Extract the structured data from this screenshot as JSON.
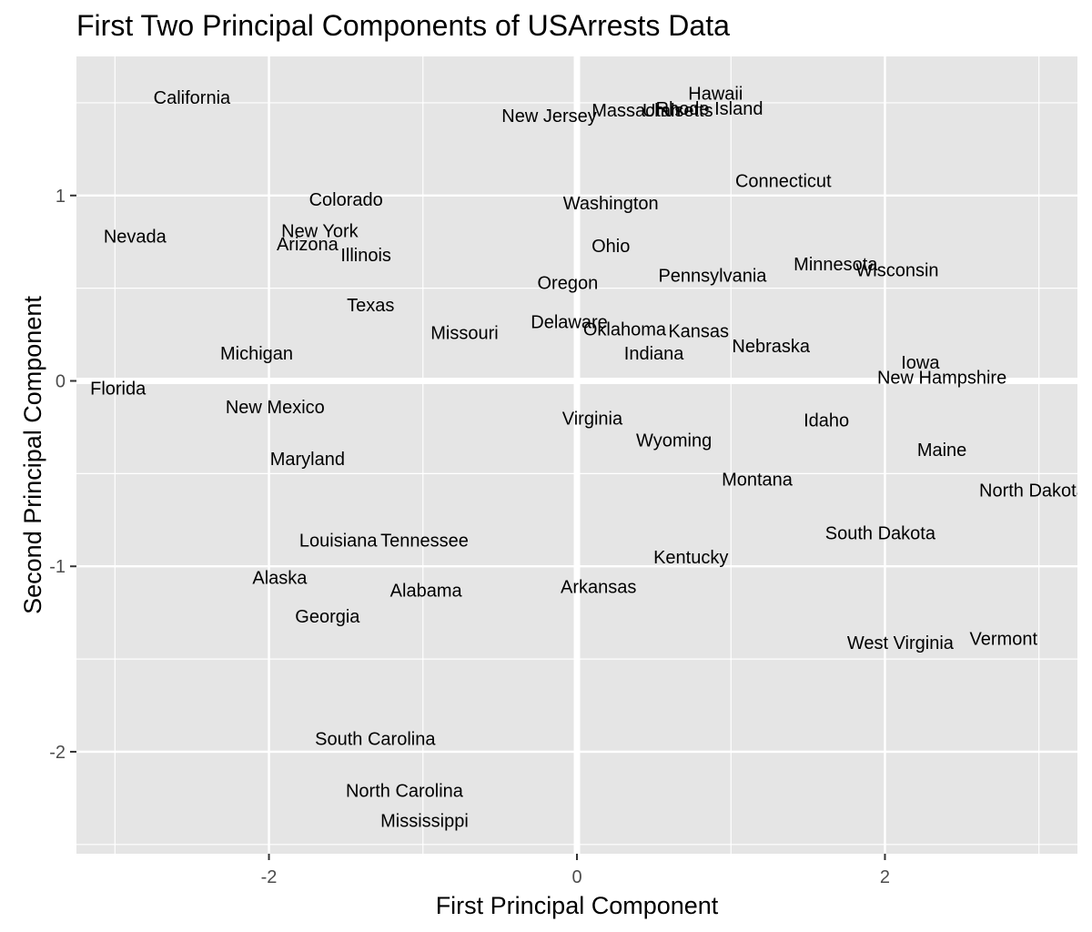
{
  "chart_data": {
    "type": "scatter",
    "title": "First Two Principal Components of USArrests Data",
    "xlabel": "First Principal Component",
    "ylabel": "Second Principal Component",
    "xlim": [
      -3.25,
      3.25
    ],
    "ylim": [
      -2.55,
      1.75
    ],
    "x_ticks": [
      -2,
      0,
      2
    ],
    "y_ticks": [
      -2,
      -1,
      0,
      1
    ],
    "x_tick_labels": [
      "-2",
      "0",
      "2"
    ],
    "y_tick_labels": [
      "-2",
      "-1",
      "0",
      "1"
    ],
    "grid": true,
    "panel_background": "#e5e5e5",
    "grid_color": "#ffffff",
    "marker": "text-label",
    "points": [
      {
        "label": "Alabama",
        "x": -0.98,
        "y": -1.13
      },
      {
        "label": "Alaska",
        "x": -1.93,
        "y": -1.06
      },
      {
        "label": "Arizona",
        "x": -1.75,
        "y": 0.74
      },
      {
        "label": "Arkansas",
        "x": 0.14,
        "y": -1.11
      },
      {
        "label": "California",
        "x": -2.5,
        "y": 1.53
      },
      {
        "label": "Colorado",
        "x": -1.5,
        "y": 0.98
      },
      {
        "label": "Connecticut",
        "x": 1.34,
        "y": 1.08
      },
      {
        "label": "Delaware",
        "x": -0.05,
        "y": 0.32
      },
      {
        "label": "Florida",
        "x": -2.98,
        "y": -0.04
      },
      {
        "label": "Georgia",
        "x": -1.62,
        "y": -1.27
      },
      {
        "label": "Hawaii",
        "x": 0.9,
        "y": 1.55
      },
      {
        "label": "Idaho",
        "x": 1.62,
        "y": -0.21
      },
      {
        "label": "Illinois",
        "x": -1.37,
        "y": 0.68
      },
      {
        "label": "Indiana",
        "x": 0.5,
        "y": 0.15
      },
      {
        "label": "Iowa",
        "x": 2.23,
        "y": 0.1
      },
      {
        "label": "Kansas",
        "x": 0.79,
        "y": 0.27
      },
      {
        "label": "Kentucky",
        "x": 0.74,
        "y": -0.95
      },
      {
        "label": "Louisiana",
        "x": -1.55,
        "y": -0.86
      },
      {
        "label": "Maine",
        "x": 2.37,
        "y": -0.37
      },
      {
        "label": "Maryland",
        "x": -1.75,
        "y": -0.42
      },
      {
        "label": "Massachusetts",
        "x": 0.49,
        "y": 1.46
      },
      {
        "label": "Michigan",
        "x": -2.08,
        "y": 0.15
      },
      {
        "label": "Minnesota",
        "x": 1.68,
        "y": 0.63
      },
      {
        "label": "Mississippi",
        "x": -0.99,
        "y": -2.37
      },
      {
        "label": "Missouri",
        "x": -0.73,
        "y": 0.26
      },
      {
        "label": "Montana",
        "x": 1.17,
        "y": -0.53
      },
      {
        "label": "Nebraska",
        "x": 1.26,
        "y": 0.19
      },
      {
        "label": "Nevada",
        "x": -2.87,
        "y": 0.78
      },
      {
        "label": "New Hampshire",
        "x": 2.37,
        "y": 0.02
      },
      {
        "label": "New Jersey",
        "x": -0.18,
        "y": 1.43
      },
      {
        "label": "New Mexico",
        "x": -1.96,
        "y": -0.14
      },
      {
        "label": "New York",
        "x": -1.67,
        "y": 0.81
      },
      {
        "label": "North Carolina",
        "x": -1.12,
        "y": -2.21
      },
      {
        "label": "North Dakota",
        "x": 2.96,
        "y": -0.59
      },
      {
        "label": "Ohio",
        "x": 0.22,
        "y": 0.73
      },
      {
        "label": "Oklahoma",
        "x": 0.31,
        "y": 0.28
      },
      {
        "label": "Oregon",
        "x": -0.06,
        "y": 0.53
      },
      {
        "label": "Pennsylvania",
        "x": 0.88,
        "y": 0.57
      },
      {
        "label": "Rhode Island",
        "x": 0.86,
        "y": 1.47
      },
      {
        "label": "South Carolina",
        "x": -1.31,
        "y": -1.93
      },
      {
        "label": "South Dakota",
        "x": 1.97,
        "y": -0.82
      },
      {
        "label": "Tennessee",
        "x": -0.99,
        "y": -0.86
      },
      {
        "label": "Texas",
        "x": -1.34,
        "y": 0.41
      },
      {
        "label": "Utah",
        "x": 0.55,
        "y": 1.46
      },
      {
        "label": "Vermont",
        "x": 2.77,
        "y": -1.39
      },
      {
        "label": "Virginia",
        "x": 0.1,
        "y": -0.2
      },
      {
        "label": "Washington",
        "x": 0.22,
        "y": 0.96
      },
      {
        "label": "West Virginia",
        "x": 2.1,
        "y": -1.41
      },
      {
        "label": "Wisconsin",
        "x": 2.08,
        "y": 0.6
      },
      {
        "label": "Wyoming",
        "x": 0.63,
        "y": -0.32
      }
    ]
  }
}
